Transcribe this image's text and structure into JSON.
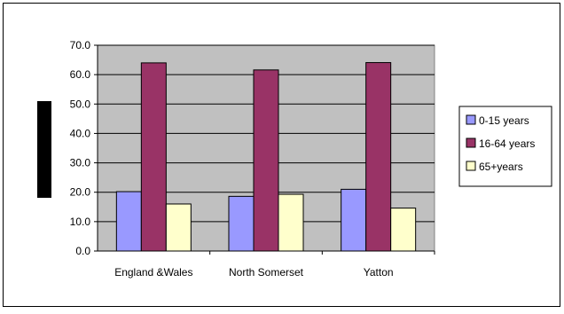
{
  "chart_data": {
    "type": "bar",
    "title": "",
    "xlabel": "",
    "ylabel": "",
    "categories": [
      "England &Wales",
      "North Somerset",
      "Yatton"
    ],
    "series": [
      {
        "name": "0-15 years",
        "values": [
          20.2,
          18.6,
          21.0
        ],
        "color": "#9999ff"
      },
      {
        "name": "16-64 years",
        "values": [
          64.0,
          61.6,
          64.1
        ],
        "color": "#993366"
      },
      {
        "name": "65+years",
        "values": [
          16.0,
          19.3,
          14.6
        ],
        "color": "#ffffcc"
      }
    ],
    "yticks": [
      "0.0",
      "10.0",
      "20.0",
      "30.0",
      "40.0",
      "50.0",
      "60.0",
      "70.0"
    ],
    "ylim": [
      0,
      70
    ],
    "grid": true,
    "legend": "right",
    "plot_background": "#c0c0c0"
  }
}
